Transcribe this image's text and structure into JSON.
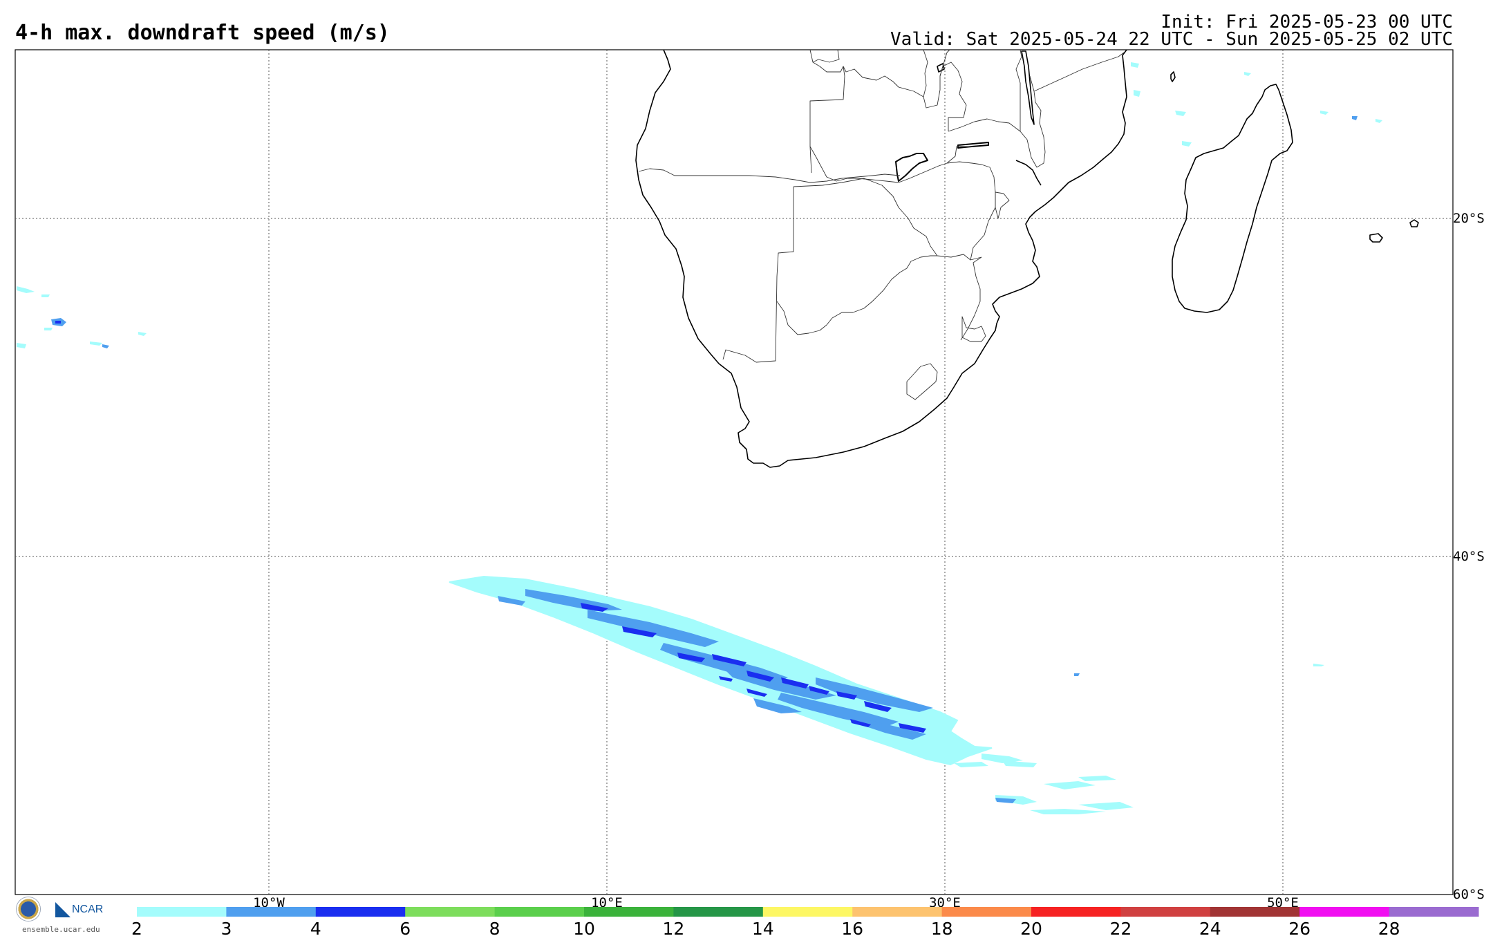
{
  "title": "4-h max. downdraft speed (m/s)",
  "init": "Init: Fri 2025-05-23 00 UTC",
  "valid": "Valid: Sat 2025-05-24 22 UTC - Sun 2025-05-25 02 UTC",
  "lon_labels": [
    "10°W",
    "10°E",
    "30°E",
    "50°E"
  ],
  "lat_labels": [
    "20°S",
    "40°S",
    "60°S"
  ],
  "colorbar": {
    "ticks": [
      "2",
      "3",
      "4",
      "6",
      "8",
      "10",
      "12",
      "14",
      "16",
      "18",
      "20",
      "22",
      "24",
      "26",
      "28"
    ],
    "colors": [
      "#a4fcfc",
      "#4f9fef",
      "#1a2ef0",
      "#7ddd5c",
      "#5bcf4c",
      "#3bb23b",
      "#259647",
      "#fdf764",
      "#fdc36f",
      "#fb8a4a",
      "#f62222",
      "#d04040",
      "#a13434",
      "#f10ef1",
      "#9a6bd0"
    ]
  },
  "logos": {
    "nsf": "NSF",
    "ncar": "NCAR",
    "url": "ensemble.ucar.edu"
  }
}
